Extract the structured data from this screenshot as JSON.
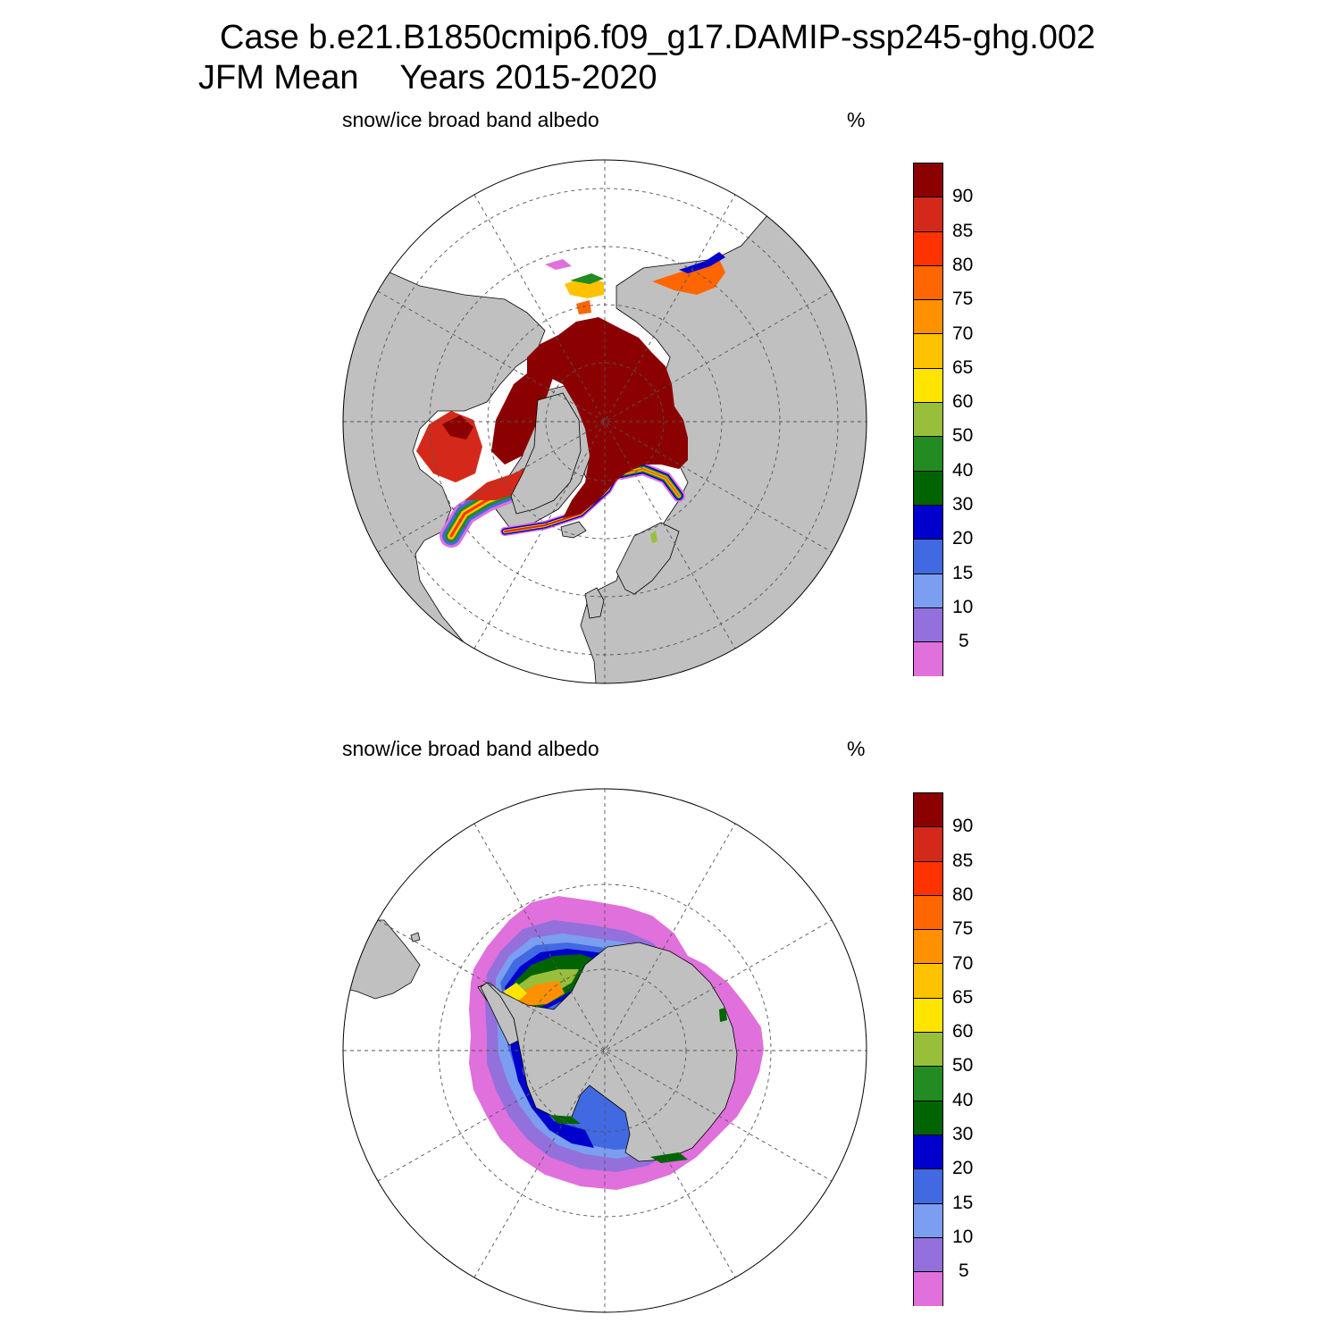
{
  "title": {
    "case": "Case b.e21.B1850cmip6.f09_g17.DAMIP-ssp245-ghg.002",
    "season": "JFM Mean",
    "years": "Years 2015-2020"
  },
  "panels": [
    {
      "id": "north",
      "title": "snow/ice broad band albedo",
      "units": "%"
    },
    {
      "id": "south",
      "title": "snow/ice broad band albedo",
      "units": "%"
    }
  ],
  "colorbar": {
    "labels": [
      "90",
      "85",
      "80",
      "75",
      "70",
      "65",
      "60",
      "50",
      "40",
      "30",
      "20",
      "15",
      "10",
      "5"
    ],
    "colors": [
      "#8b0000",
      "#d4291a",
      "#ff3300",
      "#ff6600",
      "#ff9000",
      "#ffc200",
      "#ffe400",
      "#98bf3a",
      "#228b22",
      "#006400",
      "#0000cd",
      "#4169e1",
      "#7b9ef0",
      "#9370db",
      "#e070dc"
    ]
  },
  "colors": {
    "land": "#c0c0c0",
    "background": "#ffffff"
  }
}
